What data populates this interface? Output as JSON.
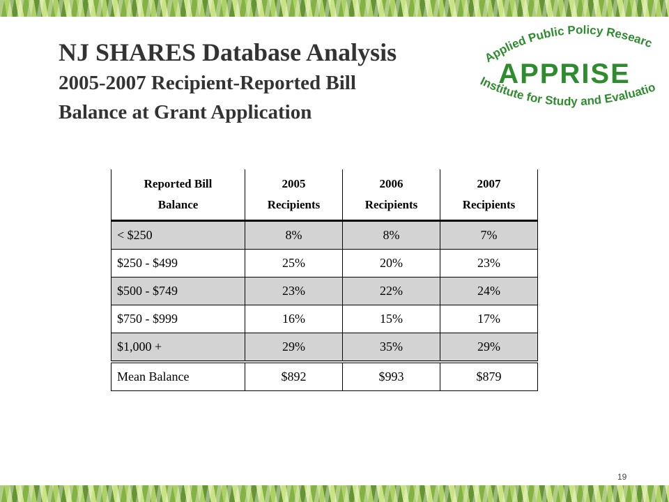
{
  "title": {
    "main": "NJ SHARES Database Analysis",
    "sub_line1": "2005-2007 Recipient-Reported  Bill",
    "sub_line2": "Balance at Grant Application"
  },
  "logo": {
    "top_text": "Applied Public Policy Research",
    "name": "APPRISE",
    "bottom_text": "Institute for Study and Evaluation",
    "color": "#2e8b2e"
  },
  "table": {
    "headers": [
      [
        "Reported Bill",
        "Balance"
      ],
      [
        "2005",
        "Recipients"
      ],
      [
        "2006",
        "Recipients"
      ],
      [
        "2007",
        "Recipients"
      ]
    ],
    "rows": [
      [
        "< $250",
        "8%",
        "8%",
        "7%"
      ],
      [
        "$250 - $499",
        "25%",
        "20%",
        "23%"
      ],
      [
        "$500 - $749",
        "23%",
        "22%",
        "24%"
      ],
      [
        "$750 - $999",
        "16%",
        "15%",
        "17%"
      ],
      [
        "$1,000 +",
        "29%",
        "35%",
        "29%"
      ],
      [
        "Mean Balance",
        "$892",
        "$993",
        "$879"
      ]
    ],
    "shade_color": "#d3d3d3"
  },
  "page_number": "19"
}
